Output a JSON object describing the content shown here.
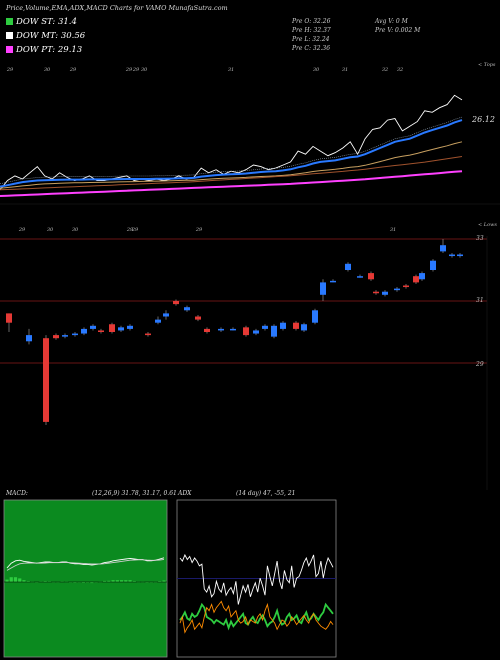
{
  "header": {
    "title": "Price,Volume,EMA,ADX,MACD Charts for VAMO MunafaSutra.com"
  },
  "legend": [
    {
      "label": "DOW ST: 31.4",
      "color": "#2ecc40"
    },
    {
      "label": "DOW MT: 30.56",
      "color": "#ffffff"
    },
    {
      "label": "DOW PT: 29.13",
      "color": "#ff40ff"
    }
  ],
  "stats": {
    "open": "Pre  O: 32.26",
    "high": "Pre  H: 32.37",
    "low": "Pre  L: 32.24",
    "close": "Pre  C: 32.36",
    "avgvol": "Avg V: 0  M",
    "prevol": "Pre  V: 0.002  M"
  },
  "axis_words": {
    "top": "< Tops",
    "lower": "< Lows"
  },
  "chart_data": [
    {
      "type": "line",
      "name": "ema-panel",
      "top_dates": [
        "29",
        "30",
        "29",
        "29",
        "29",
        "30",
        "31",
        "30",
        "31",
        "32",
        "32"
      ],
      "low_dates": [
        "29",
        "30",
        "30",
        "29",
        "29",
        "29",
        "31"
      ],
      "last_value_label": "26.12",
      "series": [
        {
          "name": "price",
          "color": "#ffffff",
          "values": [
            28.0,
            28.6,
            28.9,
            28.7,
            29.1,
            29.5,
            28.9,
            28.7,
            29.1,
            28.8,
            28.6,
            28.7,
            28.9,
            28.6,
            28.6,
            28.7,
            28.8,
            28.9,
            28.6,
            28.7,
            28.6,
            28.7,
            28.6,
            28.7,
            28.9,
            28.7,
            28.8,
            29.4,
            29.1,
            29.3,
            29.0,
            29.2,
            29.1,
            29.3,
            29.6,
            29.5,
            29.3,
            29.4,
            29.6,
            29.8,
            30.5,
            30.3,
            30.8,
            30.5,
            30.2,
            30.4,
            30.7,
            31.1,
            30.3,
            31.3,
            31.9,
            32.0,
            32.5,
            32.6,
            31.8,
            32.1,
            32.4,
            33.1,
            33.0,
            33.3,
            33.5,
            34.1,
            33.8
          ]
        },
        {
          "name": "ema-short",
          "color": "#2979ff",
          "values": [
            28.2,
            28.3,
            28.4,
            28.5,
            28.55,
            28.6,
            28.62,
            28.63,
            28.65,
            28.66,
            28.66,
            28.66,
            28.67,
            28.67,
            28.67,
            28.68,
            28.69,
            28.7,
            28.7,
            28.7,
            28.7,
            28.71,
            28.71,
            28.72,
            28.74,
            28.75,
            28.77,
            28.85,
            28.9,
            28.95,
            28.98,
            29.0,
            29.02,
            29.05,
            29.1,
            29.15,
            29.18,
            29.2,
            29.25,
            29.32,
            29.45,
            29.55,
            29.7,
            29.8,
            29.85,
            29.9,
            30.0,
            30.1,
            30.15,
            30.3,
            30.5,
            30.7,
            30.9,
            31.1,
            31.2,
            31.3,
            31.5,
            31.7,
            31.85,
            32.0,
            32.15,
            32.35,
            32.5
          ]
        },
        {
          "name": "ema-mid",
          "color": "#c8a060",
          "values": [
            28.1,
            28.15,
            28.2,
            28.25,
            28.3,
            28.35,
            28.38,
            28.4,
            28.42,
            28.44,
            28.45,
            28.46,
            28.47,
            28.48,
            28.49,
            28.5,
            28.51,
            28.52,
            28.53,
            28.54,
            28.55,
            28.56,
            28.57,
            28.58,
            28.6,
            28.61,
            28.62,
            28.66,
            28.69,
            28.72,
            28.74,
            28.76,
            28.78,
            28.8,
            28.83,
            28.86,
            28.88,
            28.9,
            28.93,
            28.97,
            29.04,
            29.1,
            29.18,
            29.24,
            29.28,
            29.32,
            29.38,
            29.45,
            29.5,
            29.58,
            29.7,
            29.82,
            29.95,
            30.08,
            30.16,
            30.24,
            30.35,
            30.48,
            30.6,
            30.72,
            30.84,
            30.98,
            31.1
          ]
        },
        {
          "name": "ema-long",
          "color": "#a0522d",
          "values": [
            28.0,
            28.02,
            28.04,
            28.06,
            28.08,
            28.1,
            28.12,
            28.14,
            28.16,
            28.18,
            28.2,
            28.22,
            28.24,
            28.26,
            28.28,
            28.3,
            28.32,
            28.34,
            28.36,
            28.38,
            28.4,
            28.42,
            28.44,
            28.46,
            28.48,
            28.5,
            28.52,
            28.55,
            28.58,
            28.61,
            28.64,
            28.67,
            28.7,
            28.73,
            28.76,
            28.79,
            28.82,
            28.85,
            28.88,
            28.91,
            28.95,
            28.99,
            29.03,
            29.07,
            29.11,
            29.15,
            29.19,
            29.24,
            29.28,
            29.33,
            29.39,
            29.45,
            29.51,
            29.57,
            29.62,
            29.67,
            29.73,
            29.79,
            29.86,
            29.93,
            30.0,
            30.08,
            30.15
          ]
        },
        {
          "name": "ema-pt",
          "color": "#ff40ff",
          "values": [
            27.6,
            27.62,
            27.64,
            27.66,
            27.68,
            27.7,
            27.72,
            27.74,
            27.76,
            27.78,
            27.8,
            27.82,
            27.84,
            27.86,
            27.88,
            27.9,
            27.92,
            27.94,
            27.96,
            27.98,
            28.0,
            28.02,
            28.04,
            28.06,
            28.08,
            28.1,
            28.12,
            28.14,
            28.16,
            28.18,
            28.2,
            28.22,
            28.24,
            28.26,
            28.28,
            28.3,
            28.32,
            28.34,
            28.36,
            28.38,
            28.41,
            28.44,
            28.47,
            28.5,
            28.53,
            28.56,
            28.59,
            28.62,
            28.65,
            28.68,
            28.72,
            28.76,
            28.8,
            28.84,
            28.88,
            28.92,
            28.96,
            29.0,
            29.04,
            29.08,
            29.12,
            29.16,
            29.2
          ]
        }
      ]
    },
    {
      "type": "candlestick",
      "name": "price-panel",
      "ylim": [
        28.4,
        33.6
      ],
      "ytick_labels": [
        "33",
        "31",
        "29"
      ],
      "gridlines": [
        33,
        31,
        29
      ],
      "candles": [
        {
          "o": 30.6,
          "c": 30.3,
          "h": 30.6,
          "l": 30.0
        },
        {
          "o": 29.7,
          "c": 29.9,
          "h": 30.1,
          "l": 29.6
        },
        {
          "o": 29.8,
          "c": 27.1,
          "h": 29.9,
          "l": 27.0
        },
        {
          "o": 29.9,
          "c": 29.8,
          "h": 29.95,
          "l": 29.75
        },
        {
          "o": 29.85,
          "c": 29.9,
          "h": 29.95,
          "l": 29.8
        },
        {
          "o": 29.9,
          "c": 29.95,
          "h": 30.0,
          "l": 29.85
        },
        {
          "o": 29.95,
          "c": 30.1,
          "h": 30.15,
          "l": 29.9
        },
        {
          "o": 30.1,
          "c": 30.2,
          "h": 30.25,
          "l": 30.05
        },
        {
          "o": 30.05,
          "c": 30.0,
          "h": 30.1,
          "l": 29.95
        },
        {
          "o": 30.25,
          "c": 30.0,
          "h": 30.3,
          "l": 29.95
        },
        {
          "o": 30.05,
          "c": 30.15,
          "h": 30.2,
          "l": 30.0
        },
        {
          "o": 30.1,
          "c": 30.2,
          "h": 30.25,
          "l": 30.05
        },
        {
          "o": 29.95,
          "c": 29.9,
          "h": 30.0,
          "l": 29.85
        },
        {
          "o": 30.3,
          "c": 30.4,
          "h": 30.5,
          "l": 30.25
        },
        {
          "o": 30.5,
          "c": 30.6,
          "h": 30.7,
          "l": 30.4
        },
        {
          "o": 31.0,
          "c": 30.9,
          "h": 31.05,
          "l": 30.85
        },
        {
          "o": 30.7,
          "c": 30.8,
          "h": 30.85,
          "l": 30.65
        },
        {
          "o": 30.5,
          "c": 30.4,
          "h": 30.55,
          "l": 30.35
        },
        {
          "o": 30.1,
          "c": 30.0,
          "h": 30.15,
          "l": 29.95
        },
        {
          "o": 30.05,
          "c": 30.1,
          "h": 30.15,
          "l": 30.0
        },
        {
          "o": 30.1,
          "c": 30.1,
          "h": 30.15,
          "l": 30.05
        },
        {
          "o": 30.15,
          "c": 29.9,
          "h": 30.2,
          "l": 29.85
        },
        {
          "o": 29.95,
          "c": 30.05,
          "h": 30.1,
          "l": 29.9
        },
        {
          "o": 30.1,
          "c": 30.2,
          "h": 30.25,
          "l": 30.05
        },
        {
          "o": 29.85,
          "c": 30.2,
          "h": 30.25,
          "l": 29.8
        },
        {
          "o": 30.1,
          "c": 30.3,
          "h": 30.35,
          "l": 30.05
        },
        {
          "o": 30.3,
          "c": 30.1,
          "h": 30.35,
          "l": 30.05
        },
        {
          "o": 30.05,
          "c": 30.25,
          "h": 30.3,
          "l": 30.0
        },
        {
          "o": 30.3,
          "c": 30.7,
          "h": 30.75,
          "l": 30.25
        },
        {
          "o": 31.2,
          "c": 31.6,
          "h": 31.7,
          "l": 31.0
        },
        {
          "o": 31.65,
          "c": 31.65,
          "h": 31.7,
          "l": 31.6
        },
        {
          "o": 32.0,
          "c": 32.2,
          "h": 32.25,
          "l": 31.95
        },
        {
          "o": 31.8,
          "c": 31.8,
          "h": 31.85,
          "l": 31.75
        },
        {
          "o": 31.9,
          "c": 31.7,
          "h": 31.95,
          "l": 31.65
        },
        {
          "o": 31.3,
          "c": 31.25,
          "h": 31.35,
          "l": 31.2
        },
        {
          "o": 31.2,
          "c": 31.3,
          "h": 31.35,
          "l": 31.15
        },
        {
          "o": 31.35,
          "c": 31.4,
          "h": 31.45,
          "l": 31.3
        },
        {
          "o": 31.5,
          "c": 31.45,
          "h": 31.55,
          "l": 31.4
        },
        {
          "o": 31.8,
          "c": 31.6,
          "h": 31.85,
          "l": 31.55
        },
        {
          "o": 31.7,
          "c": 31.9,
          "h": 31.95,
          "l": 31.65
        },
        {
          "o": 32.0,
          "c": 32.3,
          "h": 32.35,
          "l": 31.95
        },
        {
          "o": 32.6,
          "c": 32.8,
          "h": 33.0,
          "l": 32.55
        },
        {
          "o": 32.45,
          "c": 32.5,
          "h": 32.55,
          "l": 32.4
        },
        {
          "o": 32.45,
          "c": 32.5,
          "h": 32.55,
          "l": 32.4
        }
      ]
    },
    {
      "type": "line",
      "name": "macd",
      "title_left": "MACD:",
      "title_right": "(12,26,9) 31.78,  31.17,  0.61",
      "series": [
        {
          "name": "macd",
          "color": "#ffffff",
          "values": [
            0.5,
            0.9,
            1.1,
            1.15,
            1.05,
            1.0,
            0.95,
            0.9,
            0.95,
            1.0,
            1.0,
            0.95,
            0.95,
            1.0,
            1.0,
            0.9,
            0.85,
            0.85,
            0.8,
            0.8,
            0.75,
            0.8,
            0.85,
            0.95,
            1.0,
            1.1,
            1.15,
            1.2,
            1.25,
            1.3,
            1.25,
            1.2,
            1.2,
            1.1,
            1.1,
            1.15,
            1.25,
            1.35
          ]
        },
        {
          "name": "signal",
          "color": "#cccccc",
          "values": [
            0.3,
            0.5,
            0.7,
            0.85,
            0.9,
            0.92,
            0.92,
            0.9,
            0.9,
            0.92,
            0.94,
            0.94,
            0.94,
            0.95,
            0.96,
            0.94,
            0.92,
            0.9,
            0.88,
            0.86,
            0.84,
            0.83,
            0.83,
            0.86,
            0.9,
            0.95,
            1.0,
            1.05,
            1.1,
            1.15,
            1.17,
            1.18,
            1.18,
            1.16,
            1.14,
            1.14,
            1.17,
            1.22
          ]
        },
        {
          "name": "histogram",
          "color": "#2ecc40",
          "values": [
            0.2,
            0.4,
            0.4,
            0.3,
            0.15,
            0.08,
            0.03,
            0.0,
            0.05,
            0.08,
            0.06,
            0.01,
            0.01,
            0.05,
            0.04,
            -0.04,
            -0.07,
            -0.05,
            -0.08,
            -0.06,
            -0.09,
            -0.03,
            0.02,
            0.09,
            0.1,
            0.15,
            0.15,
            0.15,
            0.15,
            0.15,
            0.08,
            0.02,
            0.02,
            -0.06,
            -0.04,
            0.01,
            0.08,
            0.13
          ]
        }
      ]
    },
    {
      "type": "line",
      "name": "adx",
      "title_left": "ADX",
      "title_right": "(14 day) 47,  -55,  21",
      "series": [
        {
          "name": "adx",
          "color": "#ffffff",
          "values": [
            60,
            58,
            62,
            59,
            61,
            57,
            60,
            58,
            55,
            56,
            40,
            38,
            42,
            35,
            37,
            45,
            40,
            38,
            44,
            36,
            39,
            41,
            37,
            45,
            30,
            36,
            42,
            38,
            43,
            35,
            40,
            44,
            38,
            47,
            42,
            36,
            55,
            48,
            42,
            50,
            58,
            45,
            40,
            52,
            46,
            44,
            55,
            41,
            47,
            48,
            52,
            57,
            60,
            55,
            58,
            62,
            48,
            50,
            58,
            47,
            55,
            60,
            57,
            54
          ]
        },
        {
          "name": "plus-di",
          "color": "#2ecc40",
          "values": [
            20,
            22,
            25,
            21,
            20,
            24,
            22,
            23,
            26,
            30,
            28,
            22,
            21,
            20,
            18,
            20,
            19,
            18,
            17,
            20,
            15,
            19,
            16,
            18,
            20,
            22,
            24,
            18,
            17,
            20,
            22,
            19,
            18,
            21,
            23,
            20,
            16,
            18,
            19,
            22,
            26,
            20,
            17,
            18,
            22,
            24,
            20,
            21,
            23,
            19,
            18,
            22,
            25,
            20,
            21,
            24,
            22,
            20,
            23,
            25,
            30,
            28,
            26,
            24
          ]
        },
        {
          "name": "minus-di",
          "color": "#ff8c00",
          "values": [
            18,
            22,
            12,
            15,
            17,
            20,
            14,
            16,
            18,
            15,
            22,
            28,
            26,
            30,
            25,
            28,
            30,
            32,
            28,
            26,
            29,
            22,
            24,
            26,
            20,
            18,
            19,
            22,
            17,
            20,
            19,
            18,
            22,
            24,
            20,
            26,
            30,
            22,
            20,
            18,
            14,
            17,
            20,
            19,
            16,
            18,
            22,
            20,
            17,
            19,
            21,
            23,
            20,
            18,
            22,
            24,
            20,
            18,
            16,
            15,
            14,
            16,
            19,
            17
          ]
        }
      ]
    }
  ]
}
